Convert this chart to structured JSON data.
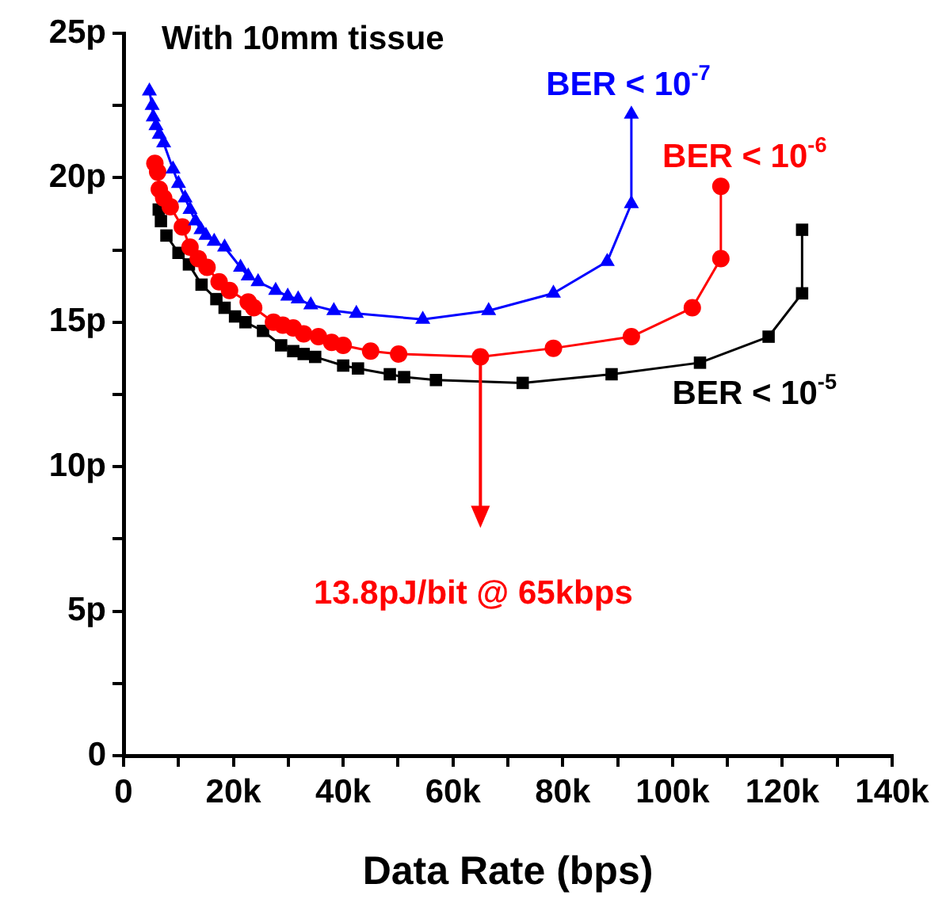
{
  "chart_data": {
    "type": "line",
    "title": "With 10mm tissue",
    "xlabel": "Data Rate (bps)",
    "xlim": [
      0,
      140000
    ],
    "ylim": [
      0,
      25
    ],
    "xticks": [
      {
        "value": 0,
        "label": "0"
      },
      {
        "value": 10000,
        "label": null
      },
      {
        "value": 20000,
        "label": "20k"
      },
      {
        "value": 30000,
        "label": null
      },
      {
        "value": 40000,
        "label": "40k"
      },
      {
        "value": 50000,
        "label": null
      },
      {
        "value": 60000,
        "label": "60k"
      },
      {
        "value": 70000,
        "label": null
      },
      {
        "value": 80000,
        "label": "80k"
      },
      {
        "value": 90000,
        "label": null
      },
      {
        "value": 100000,
        "label": "100k"
      },
      {
        "value": 110000,
        "label": null
      },
      {
        "value": 120000,
        "label": "120k"
      },
      {
        "value": 130000,
        "label": null
      },
      {
        "value": 140000,
        "label": "140k"
      }
    ],
    "yticks": [
      {
        "value": 0,
        "label": "0"
      },
      {
        "value": 2.5,
        "label": null
      },
      {
        "value": 5,
        "label": "5p"
      },
      {
        "value": 7.5,
        "label": null
      },
      {
        "value": 10,
        "label": "10p"
      },
      {
        "value": 12.5,
        "label": null
      },
      {
        "value": 15,
        "label": "15p"
      },
      {
        "value": 17.5,
        "label": null
      },
      {
        "value": 20,
        "label": "20p"
      },
      {
        "value": 22.5,
        "label": null
      },
      {
        "value": 25,
        "label": "25p"
      }
    ],
    "grid": false,
    "legend": false,
    "line_style": "solid",
    "annotations": [
      "13.8pJ/bit @ 65kbps"
    ],
    "series": [
      {
        "name": "BER < 10$^{-7}$",
        "color": "#0000ff",
        "marker": "triangle",
        "x": [
          4700,
          5200,
          5400,
          5900,
          6500,
          7300,
          9000,
          10000,
          11200,
          12100,
          13100,
          14100,
          15000,
          16500,
          18400,
          21300,
          22700,
          24500,
          27700,
          29900,
          31800,
          34100,
          38300,
          42400,
          54500,
          66500,
          78300,
          88100,
          92500,
          92500
        ],
        "values": [
          23.0,
          22.5,
          22.1,
          21.8,
          21.5,
          21.2,
          20.3,
          19.8,
          19.3,
          18.9,
          18.5,
          18.2,
          18.0,
          17.8,
          17.6,
          16.9,
          16.6,
          16.4,
          16.1,
          15.9,
          15.8,
          15.6,
          15.4,
          15.3,
          15.1,
          15.4,
          16.0,
          17.1,
          19.1,
          22.2
        ]
      },
      {
        "name": "BER < 10$^{-6}$",
        "color": "#ff0000",
        "marker": "circle",
        "x": [
          5700,
          6200,
          6500,
          7300,
          8500,
          10700,
          12100,
          13600,
          15200,
          17400,
          19300,
          22700,
          23700,
          27300,
          29000,
          30900,
          32800,
          35500,
          37900,
          40000,
          45000,
          50100,
          65000,
          78300,
          92500,
          103600,
          108800,
          108800
        ],
        "values": [
          20.5,
          20.2,
          19.6,
          19.3,
          19.0,
          18.3,
          17.6,
          17.2,
          16.9,
          16.4,
          16.1,
          15.7,
          15.5,
          15.0,
          14.9,
          14.8,
          14.6,
          14.5,
          14.3,
          14.2,
          14.0,
          13.9,
          13.8,
          14.1,
          14.5,
          15.5,
          17.2,
          19.7
        ]
      },
      {
        "name": "BER < 10$^{-5}$",
        "color": "#000000",
        "marker": "square",
        "x": [
          6400,
          6800,
          7300,
          7800,
          10000,
          11900,
          14200,
          16900,
          18400,
          20300,
          22200,
          25400,
          28700,
          30900,
          32800,
          34900,
          40000,
          42700,
          48500,
          51100,
          56900,
          72700,
          88900,
          105000,
          117500,
          123600,
          123600
        ],
        "values": [
          18.9,
          18.5,
          null,
          18.0,
          17.4,
          17.0,
          16.3,
          15.8,
          15.5,
          15.2,
          15.0,
          14.7,
          14.2,
          14.0,
          13.9,
          13.8,
          13.5,
          13.4,
          13.2,
          13.1,
          13.0,
          12.9,
          13.2,
          13.6,
          14.5,
          16.0,
          18.2
        ]
      }
    ]
  }
}
